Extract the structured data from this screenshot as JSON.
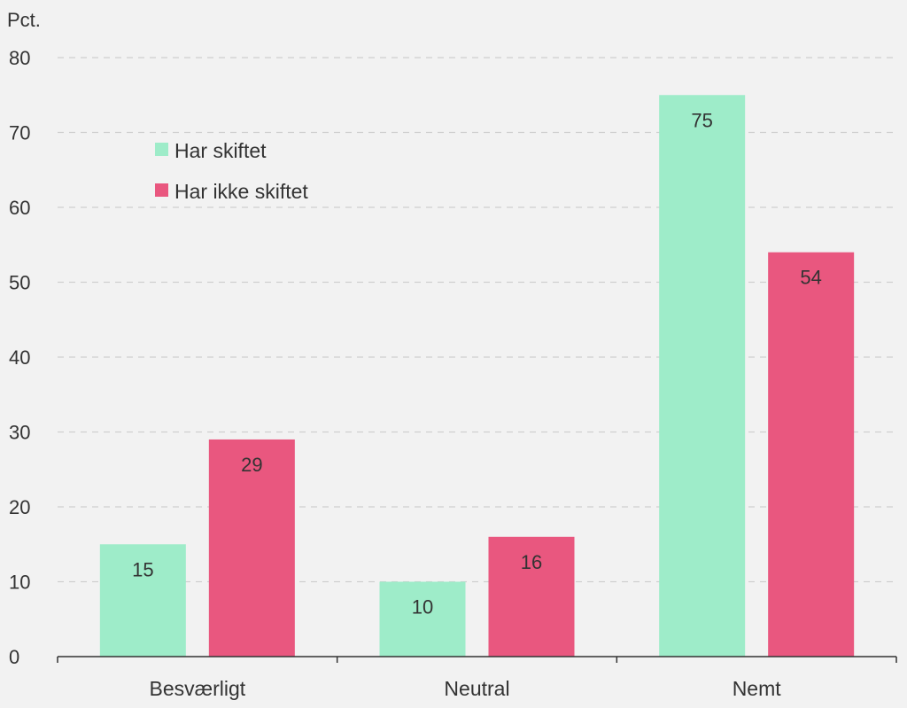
{
  "chart_data": {
    "type": "bar",
    "unit_label": "Pct.",
    "categories": [
      "Besværligt",
      "Neutral",
      "Nemt"
    ],
    "series": [
      {
        "name": "Har skiftet",
        "values": [
          15,
          10,
          75
        ],
        "labels": [
          "15",
          "10",
          "75"
        ],
        "color": "#9eecc9"
      },
      {
        "name": "Har ikke skiftet",
        "values": [
          29,
          16,
          54
        ],
        "labels": [
          "29",
          "16",
          "54"
        ],
        "color": "#e9577f"
      }
    ],
    "ylim": [
      0,
      80
    ],
    "yticks": [
      0,
      10,
      20,
      30,
      40,
      50,
      60,
      70,
      80
    ],
    "grid": true,
    "legend_position": "top-left"
  }
}
